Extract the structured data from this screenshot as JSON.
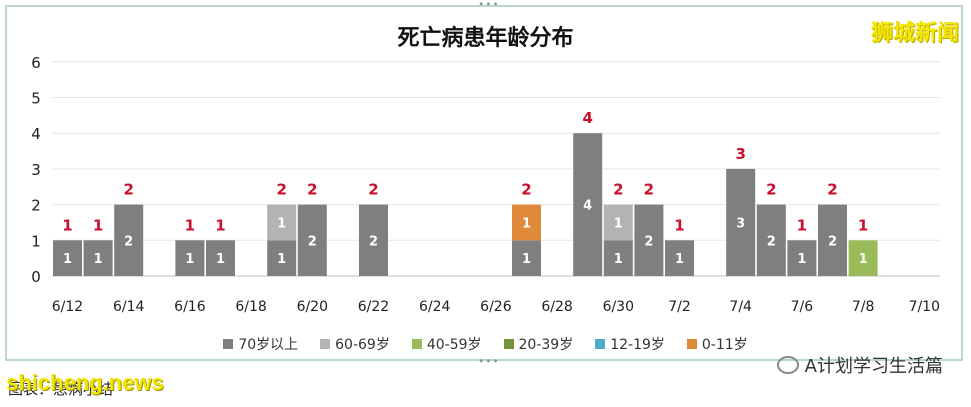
{
  "chart_data": {
    "type": "bar",
    "title": "死亡病患年龄分布",
    "x_ticks": [
      "6/12",
      "6/14",
      "6/16",
      "6/18",
      "6/20",
      "6/22",
      "6/24",
      "6/26",
      "6/28",
      "6/30",
      "7/2",
      "7/4",
      "7/6",
      "7/8",
      "7/10"
    ],
    "y_ticks": [
      "0",
      "1",
      "2",
      "3",
      "4",
      "5",
      "6"
    ],
    "ylim": [
      0,
      6
    ],
    "grid": "horizontal",
    "legend_position": "bottom",
    "categories": [
      "6/12",
      "6/13",
      "6/14",
      "6/15",
      "6/16",
      "6/17",
      "6/18",
      "6/19",
      "6/20",
      "6/21",
      "6/22",
      "6/23",
      "6/24",
      "6/25",
      "6/26",
      "6/27",
      "6/28",
      "6/29",
      "6/30",
      "7/1",
      "7/2",
      "7/3",
      "7/4",
      "7/5",
      "7/6",
      "7/7",
      "7/8",
      "7/9",
      "7/10"
    ],
    "series": [
      {
        "name": "70岁以上",
        "color": "#7f7f7f",
        "values": [
          1,
          1,
          2,
          0,
          1,
          1,
          0,
          1,
          2,
          0,
          2,
          0,
          0,
          0,
          0,
          1,
          0,
          4,
          1,
          2,
          1,
          0,
          3,
          2,
          1,
          2,
          0,
          0,
          0
        ]
      },
      {
        "name": "60-69岁",
        "color": "#b3b3b3",
        "values": [
          0,
          0,
          0,
          0,
          0,
          0,
          0,
          1,
          0,
          0,
          0,
          0,
          0,
          0,
          0,
          0,
          0,
          0,
          1,
          0,
          0,
          0,
          0,
          0,
          0,
          0,
          0,
          0,
          0
        ]
      },
      {
        "name": "40-59岁",
        "color": "#9bbb59",
        "values": [
          0,
          0,
          0,
          0,
          0,
          0,
          0,
          0,
          0,
          0,
          0,
          0,
          0,
          0,
          0,
          0,
          0,
          0,
          0,
          0,
          0,
          0,
          0,
          0,
          0,
          0,
          1,
          0,
          0
        ]
      },
      {
        "name": "20-39岁",
        "color": "#76923c",
        "values": [
          0,
          0,
          0,
          0,
          0,
          0,
          0,
          0,
          0,
          0,
          0,
          0,
          0,
          0,
          0,
          0,
          0,
          0,
          0,
          0,
          0,
          0,
          0,
          0,
          0,
          0,
          0,
          0,
          0
        ]
      },
      {
        "name": "12-19岁",
        "color": "#4bacc6",
        "values": [
          0,
          0,
          0,
          0,
          0,
          0,
          0,
          0,
          0,
          0,
          0,
          0,
          0,
          0,
          0,
          0,
          0,
          0,
          0,
          0,
          0,
          0,
          0,
          0,
          0,
          0,
          0,
          0,
          0
        ]
      },
      {
        "name": "0-11岁",
        "color": "#e08a3c",
        "values": [
          0,
          0,
          0,
          0,
          0,
          0,
          0,
          0,
          0,
          0,
          0,
          0,
          0,
          0,
          0,
          1,
          0,
          0,
          0,
          0,
          0,
          0,
          0,
          0,
          0,
          0,
          0,
          0,
          0
        ]
      }
    ],
    "totals": [
      1,
      1,
      2,
      0,
      1,
      1,
      0,
      2,
      2,
      0,
      2,
      0,
      0,
      0,
      0,
      2,
      0,
      4,
      2,
      2,
      1,
      0,
      3,
      2,
      1,
      2,
      1,
      0,
      0
    ]
  },
  "watermark_top": "狮城新闻",
  "watermark_bottom": "shicheng.news",
  "caption": "图表：患病小结",
  "wechat_label": "A计划学习生活篇",
  "colors": {
    "total_label": "#c8102e"
  }
}
